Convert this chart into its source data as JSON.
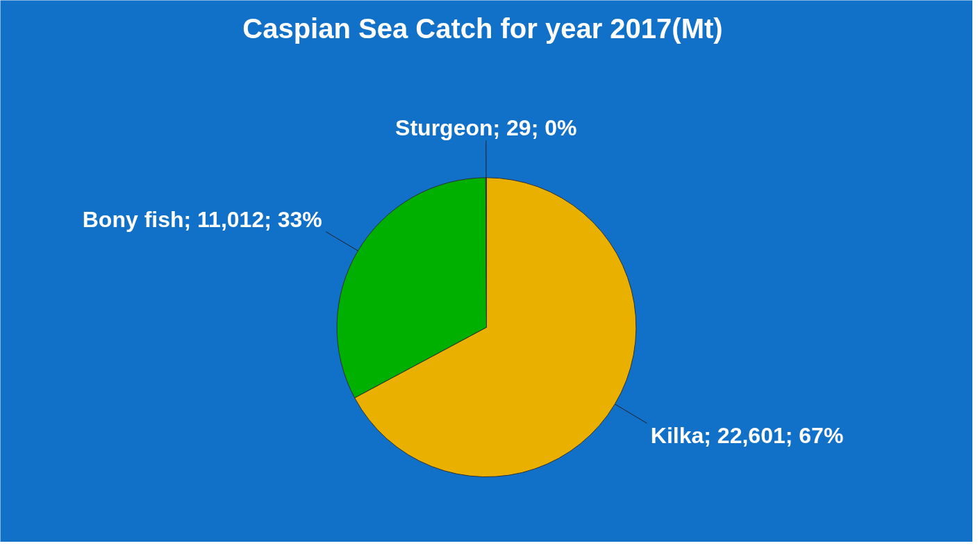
{
  "chart_data": {
    "type": "pie",
    "title": "Caspian Sea  Catch for year 2017(Mt)",
    "categories": [
      "Kilka",
      "Bony fish",
      "Sturgeon"
    ],
    "values": [
      22601,
      11012,
      29
    ],
    "value_labels": [
      "22,601; 67%",
      "11,012; 33%",
      "29; 0%"
    ],
    "colors": [
      "#eab000",
      "#00b000",
      "#c08000"
    ]
  }
}
